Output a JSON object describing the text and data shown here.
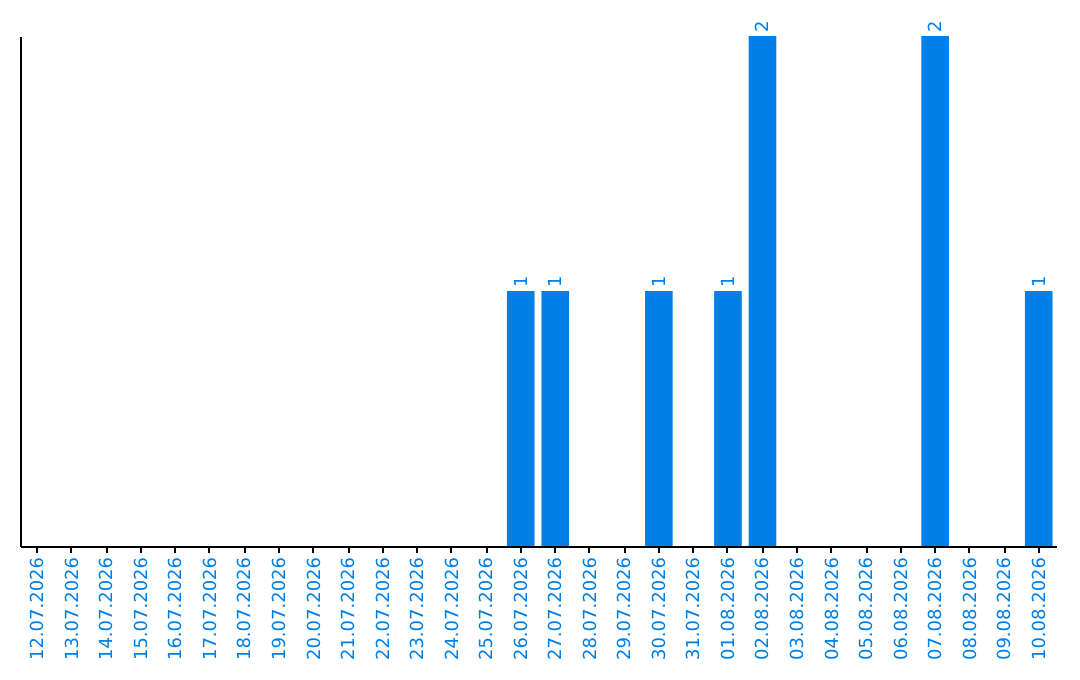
{
  "chart_data": {
    "type": "bar",
    "categories": [
      "12.07.2026",
      "13.07.2026",
      "14.07.2026",
      "15.07.2026",
      "16.07.2026",
      "17.07.2026",
      "18.07.2026",
      "19.07.2026",
      "20.07.2026",
      "21.07.2026",
      "22.07.2026",
      "23.07.2026",
      "24.07.2026",
      "25.07.2026",
      "26.07.2026",
      "27.07.2026",
      "28.07.2026",
      "29.07.2026",
      "30.07.2026",
      "31.07.2026",
      "01.08.2026",
      "02.08.2026",
      "03.08.2026",
      "04.08.2026",
      "05.08.2026",
      "06.08.2026",
      "07.08.2026",
      "08.08.2026",
      "09.08.2026",
      "10.08.2026"
    ],
    "values": [
      null,
      null,
      null,
      null,
      null,
      null,
      null,
      null,
      null,
      null,
      null,
      null,
      null,
      null,
      1,
      1,
      null,
      null,
      1,
      null,
      1,
      2,
      null,
      null,
      null,
      null,
      2,
      null,
      null,
      1
    ],
    "data_labels": true,
    "color": "#0080e6",
    "tick_labels": "x",
    "grid": false
  }
}
